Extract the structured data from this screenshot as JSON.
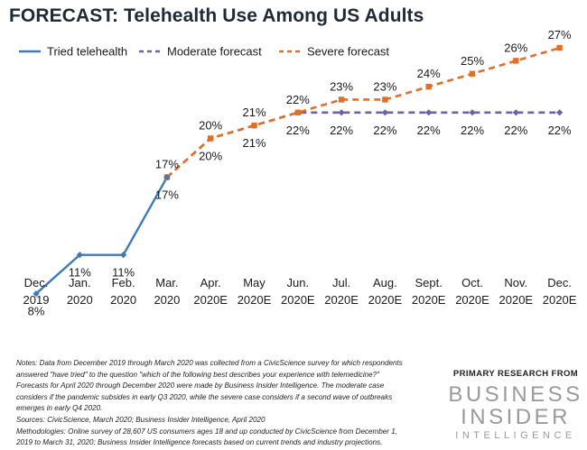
{
  "title": "FORECAST: Telehealth Use Among US Adults",
  "chart_data": {
    "type": "line",
    "categories": [
      [
        "Dec.",
        "2019"
      ],
      [
        "Jan.",
        "2020"
      ],
      [
        "Feb.",
        "2020"
      ],
      [
        "Mar.",
        "2020"
      ],
      [
        "Apr.",
        "2020E"
      ],
      [
        "May",
        "2020E"
      ],
      [
        "Jun.",
        "2020E"
      ],
      [
        "Jul.",
        "2020E"
      ],
      [
        "Aug.",
        "2020E"
      ],
      [
        "Sept.",
        "2020E"
      ],
      [
        "Oct.",
        "2020E"
      ],
      [
        "Nov.",
        "2020E"
      ],
      [
        "Dec.",
        "2020E"
      ]
    ],
    "ylim": [
      0,
      30
    ],
    "legend": "top",
    "grid": false,
    "series": [
      {
        "name": "Tried telehealth",
        "color": "#3d7ab8",
        "style": "solid",
        "values": [
          8,
          11,
          11,
          17,
          null,
          null,
          null,
          null,
          null,
          null,
          null,
          null,
          null
        ],
        "labels": [
          "8%",
          "11%",
          "11%",
          null,
          null,
          null,
          null,
          null,
          null,
          null,
          null,
          null,
          null
        ]
      },
      {
        "name": "Moderate forecast",
        "color": "#6e61a8",
        "style": "dashed",
        "values": [
          null,
          null,
          null,
          17,
          20,
          21,
          22,
          22,
          22,
          22,
          22,
          22,
          22
        ],
        "labels": [
          null,
          null,
          null,
          "17%",
          "20%",
          "21%",
          "22%",
          "22%",
          "22%",
          "22%",
          "22%",
          "22%",
          "22%"
        ]
      },
      {
        "name": "Severe forecast",
        "color": "#e26f28",
        "style": "dashed",
        "values": [
          null,
          null,
          null,
          17,
          20,
          21,
          22,
          23,
          23,
          24,
          25,
          26,
          27
        ],
        "labels": [
          null,
          null,
          null,
          "17%",
          "20%",
          "21%",
          "22%",
          "23%",
          "23%",
          "24%",
          "25%",
          "26%",
          "27%"
        ]
      }
    ]
  },
  "notes": [
    "Notes: Data from December 2019 through March 2020 was collected from a CivicScience survey for which respondents",
    "answered \"have tried\" to the question \"which of the following best describes your experience with telemedicine?\"",
    "Forecasts for April 2020 through December 2020 were made by Business Insider Intelligence. The moderate case",
    "considers if the pandemic subsides in early Q3 2020, while the severe case considers if a second wave of outbreaks",
    "emerges in early Q4 2020.",
    "Sources: CivicScience, March 2020; Business Insider Intelligence, April 2020",
    "Methodologies: Online survey of 28,607 US consumers ages 18 and up conducted by CivicScience from December 1,",
    "2019 to March 31, 2020; Business Insider Intelligence forecasts based on current trends and industry projections."
  ],
  "brand": {
    "tagline": "PRIMARY RESEARCH FROM",
    "line1": "BUSINESS",
    "line2": "INSIDER",
    "line3": "INTELLIGENCE"
  }
}
